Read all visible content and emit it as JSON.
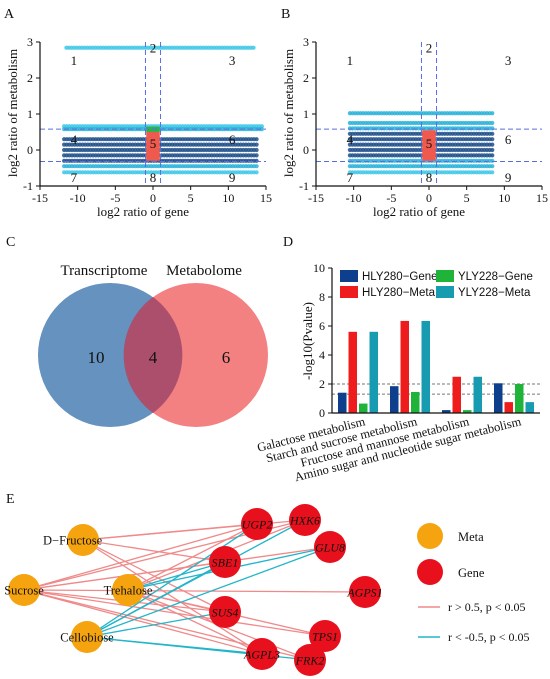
{
  "panels": {
    "A": {
      "label": "A",
      "chart_data": {
        "type": "scatter",
        "xlabel": "log2 ratio of gene",
        "ylabel": "log2 ratio of metabolism",
        "xlim": [
          -15,
          15
        ],
        "ylim": [
          -1,
          3
        ],
        "xticks": [
          "-15",
          "-10",
          "-5",
          "0",
          "5",
          "10",
          "15"
        ],
        "yticks": [
          "-1",
          "0",
          "1",
          "2",
          "3"
        ],
        "vlines": [
          -1,
          1
        ],
        "hlines": [
          0.58,
          -0.32
        ],
        "quadrant_labels": [
          "1",
          "2",
          "3",
          "4",
          "5",
          "6",
          "7",
          "8",
          "9"
        ],
        "bands": [
          {
            "y": 2.84,
            "xmin": -11.5,
            "xmax": 13.5,
            "color": "#3ec8e8"
          },
          {
            "y": 0.66,
            "xmin": -11.8,
            "xmax": 14.5,
            "color": "#3ec8e8"
          },
          {
            "y": 0.58,
            "xmin": -11.8,
            "xmax": 14.5,
            "color": "#29b3d9"
          },
          {
            "y": 0.3,
            "xmin": -11.8,
            "xmax": 14.0,
            "color": "#1f4f8a"
          },
          {
            "y": 0.15,
            "xmin": -11.8,
            "xmax": 14.0,
            "color": "#1f4f8a"
          },
          {
            "y": 0.0,
            "xmin": -11.8,
            "xmax": 14.0,
            "color": "#1f4f8a"
          },
          {
            "y": -0.15,
            "xmin": -11.8,
            "xmax": 14.0,
            "color": "#1f4f8a"
          },
          {
            "y": -0.3,
            "xmin": -11.8,
            "xmax": 14.0,
            "color": "#1f4f8a"
          },
          {
            "y": -0.45,
            "xmin": -11.8,
            "xmax": 14.0,
            "color": "#29b3d9"
          },
          {
            "y": -0.62,
            "xmin": -11.8,
            "xmax": 14.0,
            "color": "#3ec8e8"
          }
        ],
        "center_highlight": {
          "red": [
            -0.9,
            0.9,
            -0.3,
            0.5
          ],
          "green": [
            -0.9,
            0.9,
            0.5,
            0.65
          ]
        }
      }
    },
    "B": {
      "label": "B",
      "chart_data": {
        "type": "scatter",
        "xlabel": "log2 ratio of gene",
        "ylabel": "log2 ratio of metabolism",
        "xlim": [
          -15,
          15
        ],
        "ylim": [
          -1,
          3
        ],
        "xticks": [
          "-15",
          "-10",
          "-5",
          "0",
          "5",
          "10",
          "15"
        ],
        "yticks": [
          "-1",
          "0",
          "1",
          "2",
          "3"
        ],
        "vlines": [
          -1,
          1
        ],
        "hlines": [
          0.58,
          -0.32
        ],
        "quadrant_labels": [
          "1",
          "2",
          "3",
          "4",
          "5",
          "6",
          "7",
          "8",
          "9"
        ],
        "bands": [
          {
            "y": 1.02,
            "xmin": -10.5,
            "xmax": 8.5,
            "color": "#29b3d9"
          },
          {
            "y": 0.75,
            "xmin": -10.5,
            "xmax": 8.5,
            "color": "#29b3d9"
          },
          {
            "y": 0.6,
            "xmin": -10.5,
            "xmax": 8.5,
            "color": "#29b3d9"
          },
          {
            "y": 0.45,
            "xmin": -10.5,
            "xmax": 8.5,
            "color": "#1f4f8a"
          },
          {
            "y": 0.3,
            "xmin": -10.5,
            "xmax": 8.5,
            "color": "#1f4f8a"
          },
          {
            "y": 0.15,
            "xmin": -10.5,
            "xmax": 8.5,
            "color": "#1f4f8a"
          },
          {
            "y": 0.0,
            "xmin": -10.5,
            "xmax": 8.5,
            "color": "#1f4f8a"
          },
          {
            "y": -0.15,
            "xmin": -10.5,
            "xmax": 8.5,
            "color": "#1f4f8a"
          },
          {
            "y": -0.3,
            "xmin": -10.5,
            "xmax": 8.5,
            "color": "#29b3d9"
          },
          {
            "y": -0.45,
            "xmin": -10.5,
            "xmax": 8.5,
            "color": "#29b3d9"
          },
          {
            "y": -0.62,
            "xmin": -10.5,
            "xmax": 8.5,
            "color": "#3ec8e8"
          }
        ],
        "center_highlight": {
          "red": [
            -0.9,
            0.9,
            -0.3,
            0.55
          ],
          "green": []
        }
      }
    },
    "C": {
      "label": "C",
      "chart_data": {
        "type": "venn",
        "sets": [
          {
            "name": "Transcriptome",
            "only": 10,
            "color": "#4a7fb3"
          },
          {
            "name": "Metabolome",
            "only": 6,
            "color": "#f26b6b"
          }
        ],
        "overlap": 4
      }
    },
    "D": {
      "label": "D",
      "chart_data": {
        "type": "bar",
        "ylabel": "-log10(Pvalue)",
        "ylim": [
          0,
          10
        ],
        "yticks": [
          "0",
          "2",
          "4",
          "6",
          "8",
          "10"
        ],
        "hlines": [
          2.0,
          1.3
        ],
        "categories": [
          "Galactose metabolism",
          "Starch and sucrose metabolism",
          "Fructose and mannose metabolism",
          "Amino sugar and nucleotide sugar metabolism"
        ],
        "series": [
          {
            "name": "HLY280−Gene",
            "color": "#0e3f8c",
            "values": [
              1.4,
              1.85,
              0.2,
              2.05
            ]
          },
          {
            "name": "HLY280−Meta",
            "color": "#ee1c1c",
            "values": [
              5.6,
              6.35,
              2.5,
              0.75
            ]
          },
          {
            "name": "YLY228−Gene",
            "color": "#1fb33a",
            "values": [
              0.65,
              1.45,
              0.2,
              2.0
            ]
          },
          {
            "name": "YLY228−Meta",
            "color": "#179bb0",
            "values": [
              5.6,
              6.35,
              2.5,
              0.75
            ]
          }
        ]
      }
    },
    "E": {
      "label": "E",
      "network": {
        "meta_nodes": [
          "D−Fructose",
          "Sucrose",
          "Trehalose",
          "Cellobiose"
        ],
        "gene_nodes": [
          "UGP2",
          "HXK6",
          "SBE1",
          "GLU8",
          "AGPS1",
          "SUS4",
          "TPS1",
          "AGPL3",
          "FRK2"
        ],
        "legend": [
          {
            "key": "meta",
            "label": "Meta",
            "color": "#f5a30f"
          },
          {
            "key": "gene",
            "label": "Gene",
            "color": "#e8101c"
          },
          {
            "key": "pos",
            "label": "r > 0.5, p < 0.05",
            "color": "#f08a8a"
          },
          {
            "key": "neg",
            "label": "r < -0.5, p < 0.05",
            "color": "#22b5c9"
          }
        ],
        "edges": [
          [
            "D−Fructose",
            "UGP2",
            "pos"
          ],
          [
            "D−Fructose",
            "SBE1",
            "pos"
          ],
          [
            "D−Fructose",
            "SUS4",
            "pos"
          ],
          [
            "D−Fructose",
            "AGPL3",
            "pos"
          ],
          [
            "D−Fructose",
            "HXK6",
            "pos"
          ],
          [
            "Sucrose",
            "UGP2",
            "pos"
          ],
          [
            "Sucrose",
            "HXK6",
            "pos"
          ],
          [
            "Sucrose",
            "SBE1",
            "pos"
          ],
          [
            "Sucrose",
            "GLU8",
            "pos"
          ],
          [
            "Sucrose",
            "SUS4",
            "pos"
          ],
          [
            "Sucrose",
            "TPS1",
            "pos"
          ],
          [
            "Sucrose",
            "AGPL3",
            "pos"
          ],
          [
            "Sucrose",
            "FRK2",
            "pos"
          ],
          [
            "Sucrose",
            "AGPS1",
            "pos"
          ],
          [
            "Trehalose",
            "UGP2",
            "pos"
          ],
          [
            "Trehalose",
            "SBE1",
            "neg"
          ],
          [
            "Trehalose",
            "GLU8",
            "neg"
          ],
          [
            "Trehalose",
            "SUS4",
            "pos"
          ],
          [
            "Trehalose",
            "AGPL3",
            "pos"
          ],
          [
            "Trehalose",
            "FRK2",
            "pos"
          ],
          [
            "Trehalose",
            "HXK6",
            "pos"
          ],
          [
            "Trehalose",
            "TPS1",
            "pos"
          ],
          [
            "Cellobiose",
            "HXK6",
            "neg"
          ],
          [
            "Cellobiose",
            "GLU8",
            "neg"
          ],
          [
            "Cellobiose",
            "SBE1",
            "neg"
          ],
          [
            "Cellobiose",
            "SUS4",
            "neg"
          ],
          [
            "Cellobiose",
            "AGPL3",
            "neg"
          ],
          [
            "Cellobiose",
            "UGP2",
            "neg"
          ],
          [
            "Cellobiose",
            "FRK2",
            "neg"
          ]
        ]
      }
    }
  }
}
